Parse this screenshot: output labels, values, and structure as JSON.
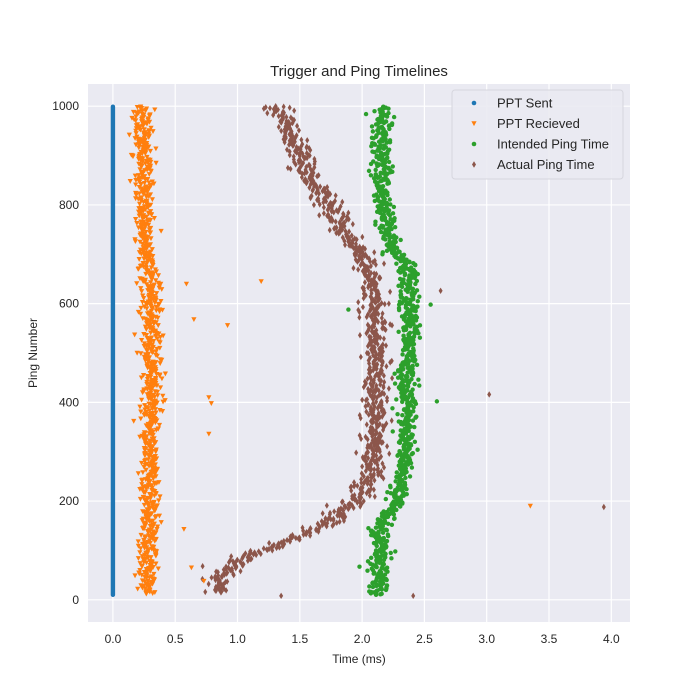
{
  "chart_data": {
    "type": "scatter",
    "title": "Trigger and Ping Timelines",
    "xlabel": "Time (ms)",
    "ylabel": "Ping Number",
    "xlim": [
      -0.2,
      4.15
    ],
    "ylim": [
      -45,
      1045
    ],
    "x_ticks": [
      0.0,
      0.5,
      1.0,
      1.5,
      2.0,
      2.5,
      3.0,
      3.5,
      4.0
    ],
    "x_tick_labels": [
      "0.0",
      "0.5",
      "1.0",
      "1.5",
      "2.0",
      "2.5",
      "3.0",
      "3.5",
      "4.0"
    ],
    "y_ticks": [
      0,
      200,
      400,
      600,
      800,
      1000
    ],
    "y_tick_labels": [
      "0",
      "200",
      "400",
      "600",
      "800",
      "1000"
    ],
    "grid": true,
    "background": "#EAEAF2",
    "legend_position": "top-right",
    "series": [
      {
        "name": "PPT Sent",
        "marker": "circle",
        "color": "#1f77b4"
      },
      {
        "name": "PPT Recieved",
        "marker": "triangle-down",
        "color": "#ff7f0e"
      },
      {
        "name": "Intended Ping Time",
        "marker": "circle",
        "color": "#2ca02c"
      },
      {
        "name": "Actual Ping Time",
        "marker": "diamond",
        "color": "#8c564b"
      }
    ],
    "series_trends": {
      "PPT Sent": {
        "x": [
          [
            0,
            0.0
          ],
          [
            999,
            0.0
          ]
        ],
        "spread": 0.0,
        "y_range": [
          10,
          999
        ]
      },
      "PPT Recieved": {
        "x": [
          [
            0,
            0.28
          ],
          [
            200,
            0.29
          ],
          [
            400,
            0.31
          ],
          [
            600,
            0.31
          ],
          [
            700,
            0.27
          ],
          [
            800,
            0.24
          ],
          [
            900,
            0.25
          ],
          [
            999,
            0.24
          ]
        ],
        "spread": 0.04,
        "y_range": [
          12,
          999
        ]
      },
      "Intended Ping Time": {
        "x": [
          [
            0,
            2.14
          ],
          [
            150,
            2.14
          ],
          [
            200,
            2.27
          ],
          [
            300,
            2.36
          ],
          [
            400,
            2.36
          ],
          [
            500,
            2.37
          ],
          [
            600,
            2.37
          ],
          [
            680,
            2.37
          ],
          [
            700,
            2.25
          ],
          [
            800,
            2.16
          ],
          [
            900,
            2.16
          ],
          [
            999,
            2.15
          ]
        ],
        "spread": 0.04,
        "y_range": [
          10,
          999
        ]
      },
      "Actual Ping Time": {
        "x": [
          [
            15,
            0.86
          ],
          [
            50,
            0.88
          ],
          [
            80,
            1.0
          ],
          [
            100,
            1.2
          ],
          [
            120,
            1.42
          ],
          [
            150,
            1.7
          ],
          [
            200,
            1.95
          ],
          [
            250,
            2.07
          ],
          [
            300,
            2.1
          ],
          [
            400,
            2.1
          ],
          [
            500,
            2.11
          ],
          [
            600,
            2.1
          ],
          [
            680,
            2.03
          ],
          [
            750,
            1.85
          ],
          [
            850,
            1.6
          ],
          [
            950,
            1.42
          ],
          [
            1000,
            1.33
          ]
        ],
        "spread": 0.05,
        "y_range": [
          15,
          1000
        ]
      }
    },
    "outliers": [
      {
        "series": "PPT Recieved",
        "x": 1.19,
        "y": 645
      },
      {
        "series": "PPT Recieved",
        "x": 0.92,
        "y": 556
      },
      {
        "series": "PPT Recieved",
        "x": 0.65,
        "y": 568
      },
      {
        "series": "PPT Recieved",
        "x": 0.59,
        "y": 640
      },
      {
        "series": "PPT Recieved",
        "x": 0.77,
        "y": 410
      },
      {
        "series": "PPT Recieved",
        "x": 0.79,
        "y": 398
      },
      {
        "series": "PPT Recieved",
        "x": 0.77,
        "y": 336
      },
      {
        "series": "PPT Recieved",
        "x": 0.57,
        "y": 143
      },
      {
        "series": "PPT Recieved",
        "x": 0.63,
        "y": 65
      },
      {
        "series": "PPT Recieved",
        "x": 0.73,
        "y": 38
      },
      {
        "series": "PPT Recieved",
        "x": 3.35,
        "y": 190
      },
      {
        "series": "Actual Ping Time",
        "x": 3.94,
        "y": 188
      },
      {
        "series": "Actual Ping Time",
        "x": 3.02,
        "y": 416
      },
      {
        "series": "Actual Ping Time",
        "x": 2.63,
        "y": 626
      },
      {
        "series": "Actual Ping Time",
        "x": 2.41,
        "y": 8
      },
      {
        "series": "Actual Ping Time",
        "x": 1.35,
        "y": 8
      },
      {
        "series": "Actual Ping Time",
        "x": 0.72,
        "y": 68
      },
      {
        "series": "Intended Ping Time",
        "x": 2.6,
        "y": 402
      },
      {
        "series": "Intended Ping Time",
        "x": 2.55,
        "y": 598
      },
      {
        "series": "Intended Ping Time",
        "x": 1.89,
        "y": 588
      }
    ]
  }
}
